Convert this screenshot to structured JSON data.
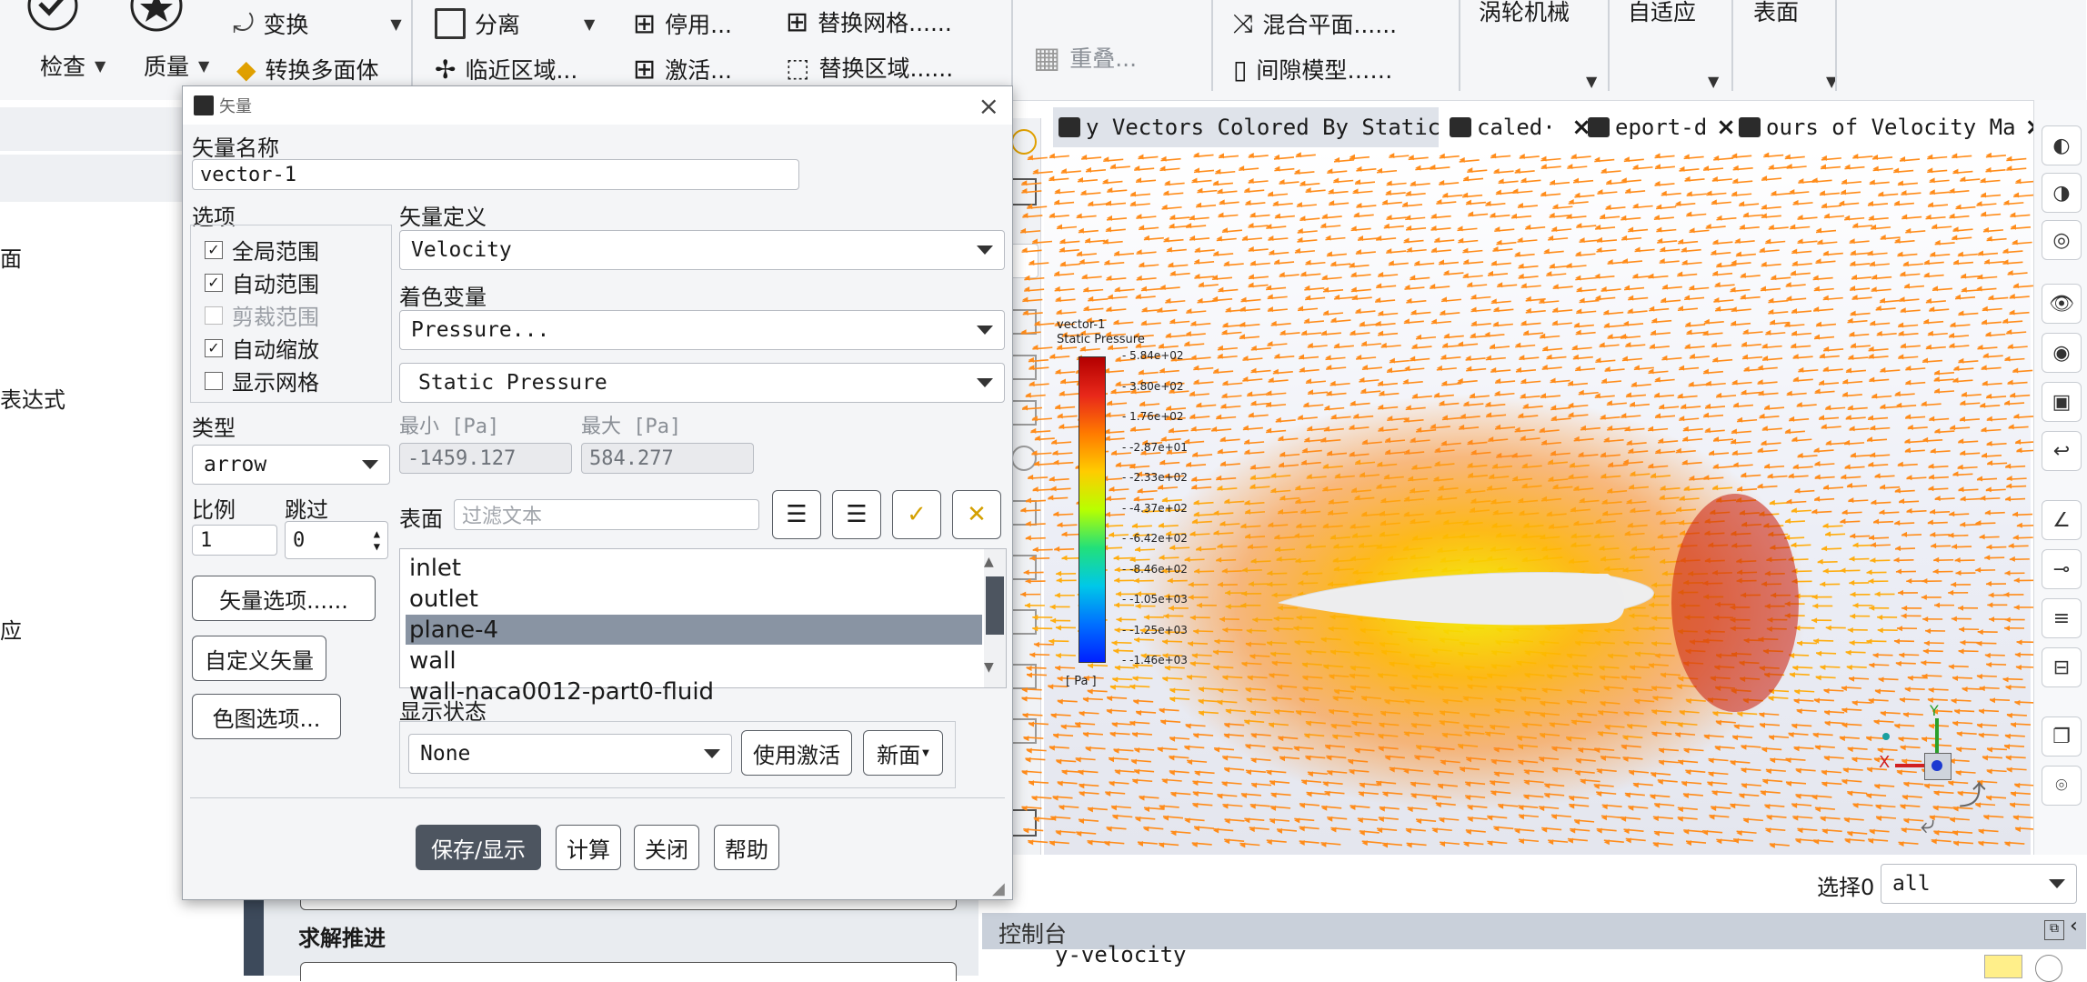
{
  "ribbon": {
    "check_label": "检查",
    "quality_label": "质量",
    "transform_label": "变换",
    "convert_label": "转换多面体",
    "separate_label": "分离",
    "adjacent_label": "临近区域...",
    "deactivate_label": "停用...",
    "activate_label": "激活...",
    "replace_mesh_label": "替换网格......",
    "replace_zone_label": "替换区域......",
    "overlap_label": "重叠...",
    "mixing_plane_label": "混合平面......",
    "gap_model_label": "间隙模型……",
    "turbo_label": "涡轮机械",
    "adapt_label": "自适应",
    "surface_label": "表面"
  },
  "left_pane": {
    "item_face": "面",
    "item_expr": "表达式",
    "item_pos": "应",
    "solution_advance": "求解推进"
  },
  "dialog": {
    "title": "矢量",
    "close": "×",
    "name_label": "矢量名称",
    "name_value": "vector-1",
    "options_label": "选项",
    "options": [
      {
        "label": "全局范围",
        "checked": true,
        "enabled": true
      },
      {
        "label": "自动范围",
        "checked": true,
        "enabled": true
      },
      {
        "label": "剪裁范围",
        "checked": false,
        "enabled": false
      },
      {
        "label": "自动缩放",
        "checked": true,
        "enabled": true
      },
      {
        "label": "显示网格",
        "checked": false,
        "enabled": true
      }
    ],
    "vector_def_label": "矢量定义",
    "vector_def_value": "Velocity",
    "color_var_label": "着色变量",
    "color_var_value": "Pressure...",
    "color_sub_value": "Static Pressure",
    "min_label": "最小 [Pa]",
    "max_label": "最大 [Pa]",
    "min_value": "-1459.127",
    "max_value": "584.277",
    "type_label": "类型",
    "type_value": "arrow",
    "scale_label": "比例",
    "skip_label": "跳过",
    "scale_value": "1",
    "skip_value": "0",
    "vector_options_btn": "矢量选项......",
    "custom_vector_btn": "自定义矢量",
    "colormap_btn": "色图选项...",
    "surface_label": "表面",
    "filter_placeholder": "过滤文本",
    "surfaces": [
      "inlet",
      "outlet",
      "plane-4",
      "wall",
      "wall-naca0012-part0-fluid"
    ],
    "selected_surface_index": 2,
    "display_state_label": "显示状态",
    "display_state_value": "None",
    "use_active_btn": "使用激活",
    "new_btn": "新面",
    "save_btn": "保存/显示",
    "compute_btn": "计算",
    "close_btn": "关闭",
    "help_btn": "帮助"
  },
  "graphics": {
    "tabs": [
      {
        "label": "y Vectors Colored By Static",
        "active": true
      },
      {
        "label": "caled·",
        "active": false
      },
      {
        "label": "eport-d",
        "active": false
      },
      {
        "label": "ours of Velocity Ma",
        "active": false
      }
    ],
    "tab_close": "×",
    "colorbar": {
      "title1": "vector-1",
      "title2": "Static Pressure",
      "unit": "[ Pa ]",
      "ticks": [
        "5.84e+02",
        "3.80e+02",
        "1.76e+02",
        "-2.87e+01",
        "-2.33e+02",
        "-4.37e+02",
        "-6.42e+02",
        "-8.46e+02",
        "-1.05e+03",
        "-1.25e+03",
        "-1.46e+03"
      ],
      "colors": [
        "#b30000",
        "#e8281a",
        "#ff7a00",
        "#ffcc00",
        "#b8ff00",
        "#22e07a",
        "#00c8e8",
        "#0070ff",
        "#0020ff"
      ]
    },
    "axis_x": "X",
    "axis_y": "Y"
  },
  "select_label": "选择0",
  "select_value": "all",
  "console_label": "控制台",
  "console_line": "y-velocity"
}
